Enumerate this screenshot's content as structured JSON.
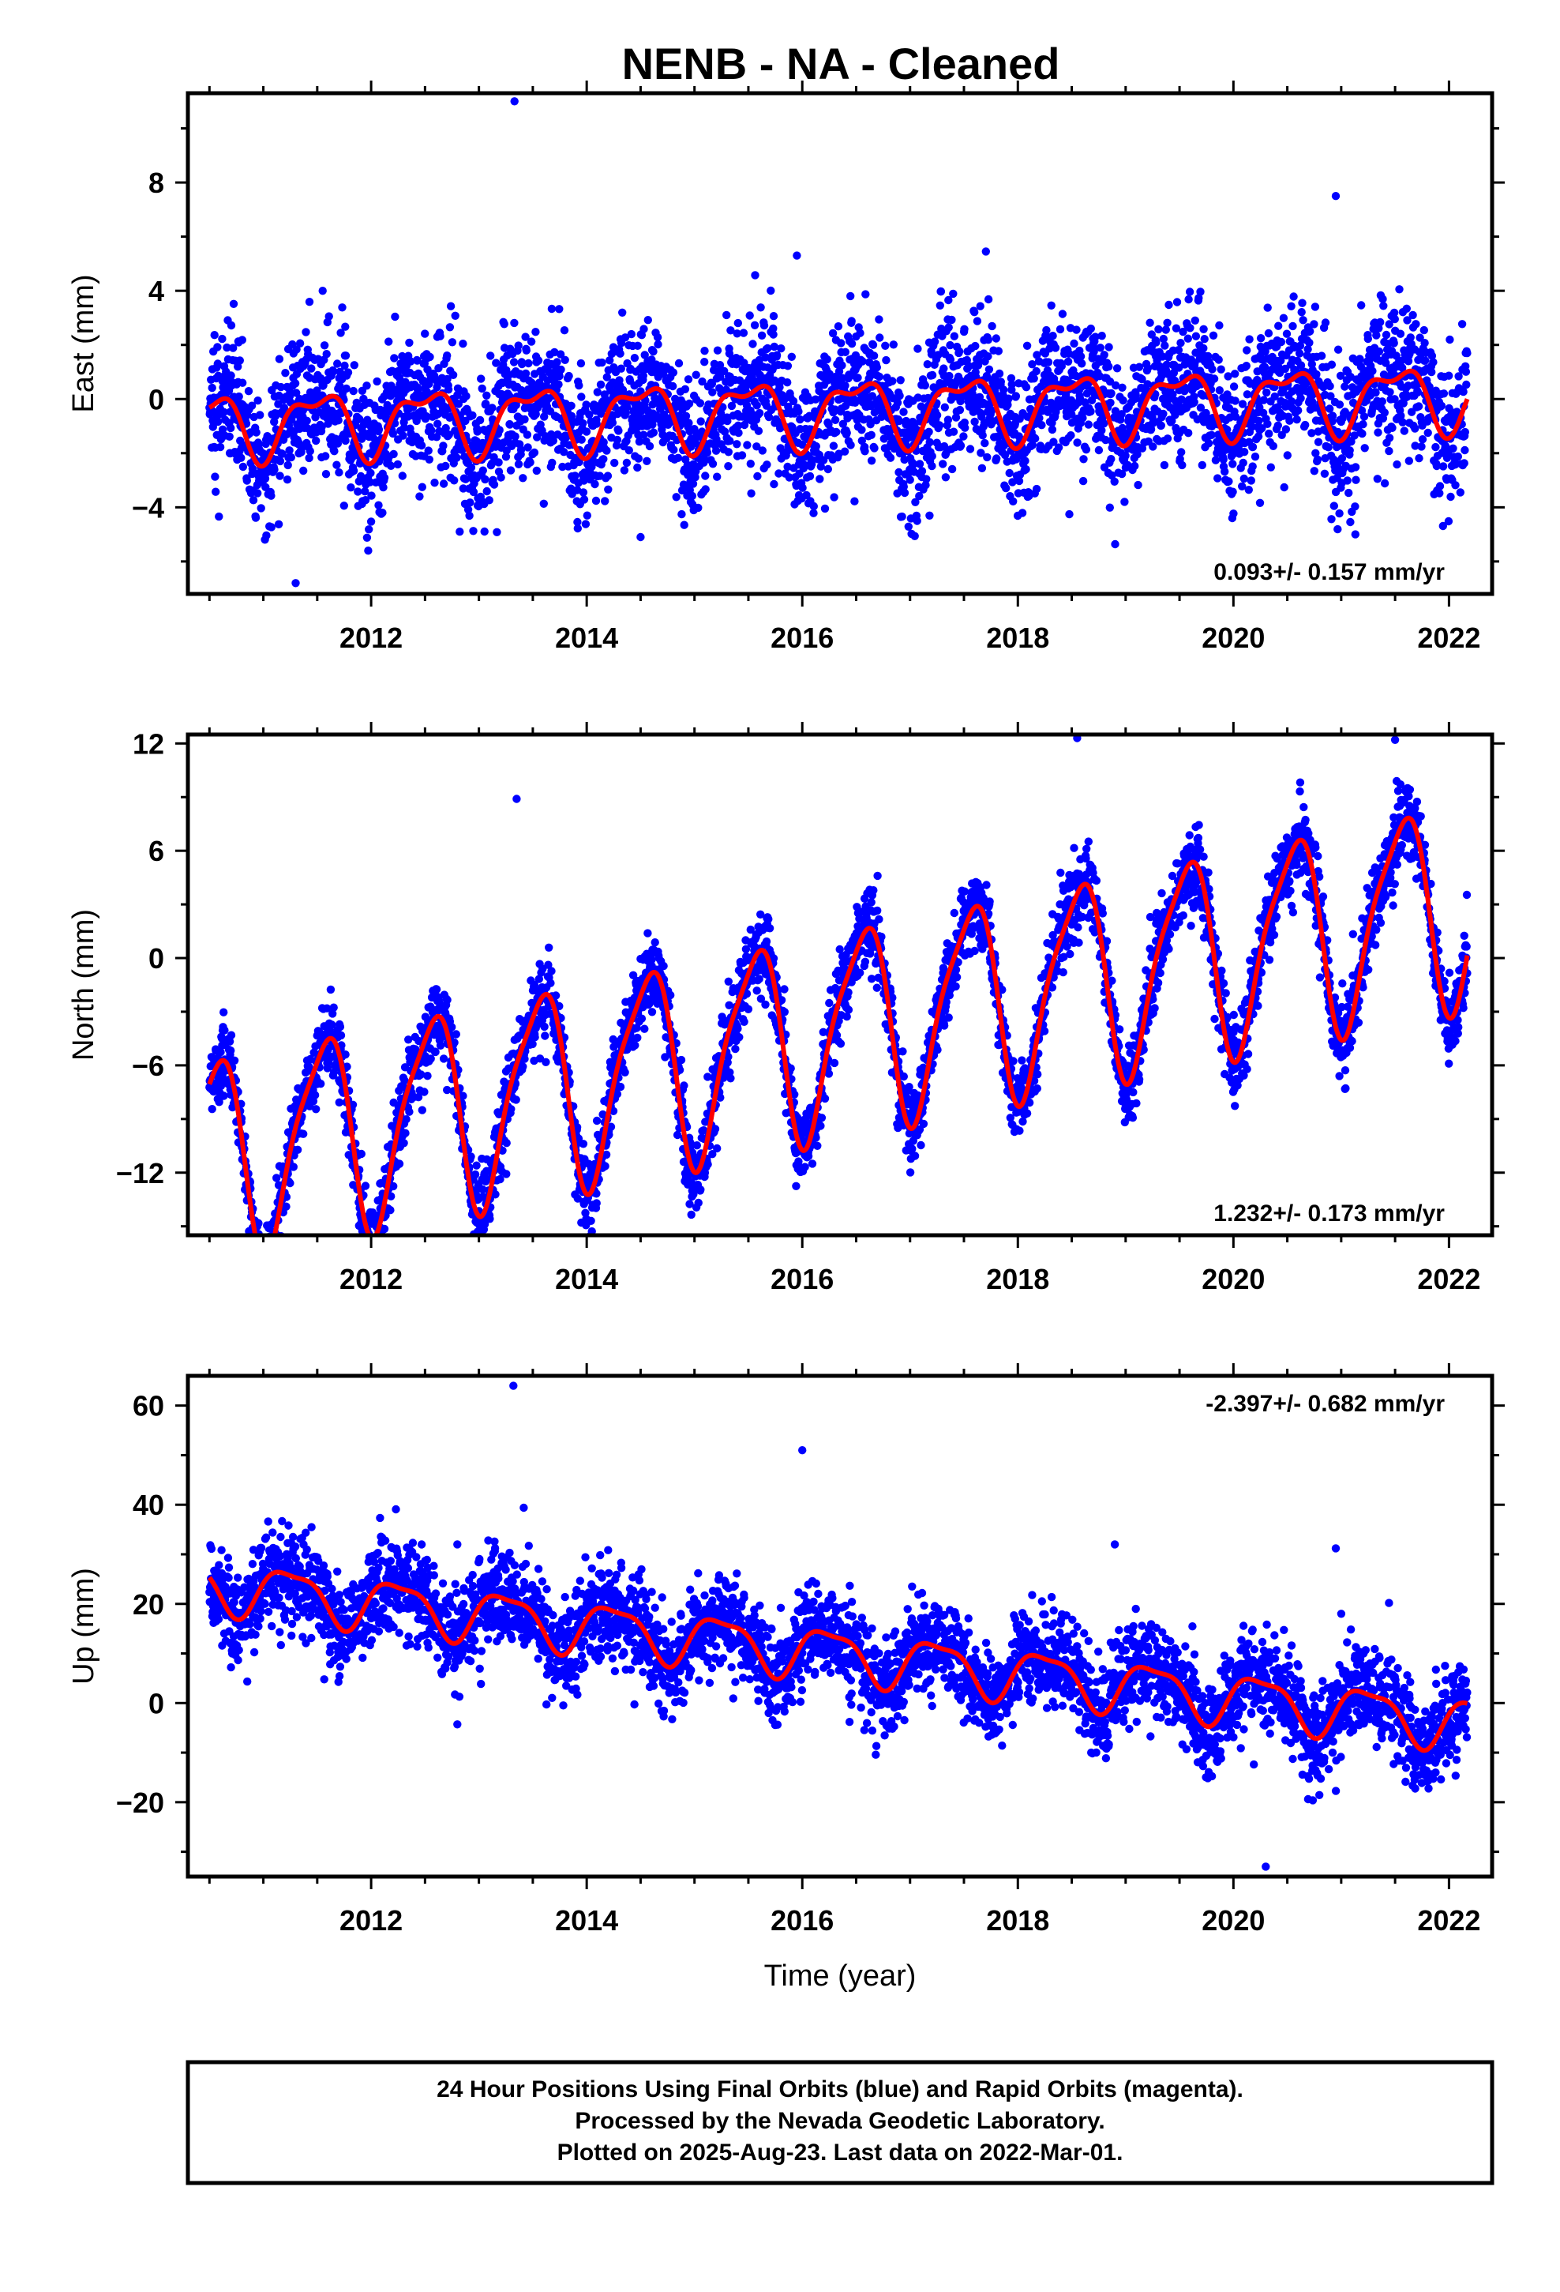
{
  "title": "NENB  - NA - Cleaned",
  "colors": {
    "points": "#0000ff",
    "fit": "#ff0000",
    "frame": "#000000"
  },
  "chart_data": [
    {
      "type": "scatter",
      "component": "East",
      "ylabel": "East (mm)",
      "xlabel": "",
      "xlim": [
        2010.3,
        2022.4
      ],
      "ylim": [
        -7.2,
        11.3
      ],
      "yticks": [
        -4,
        0,
        4,
        8
      ],
      "xticks": [
        2012,
        2014,
        2016,
        2018,
        2020,
        2022
      ],
      "rate_text": "0.093+/- 0.157 mm/yr",
      "rate_position": "bottom-right",
      "trend": {
        "slope": 0.093,
        "offset": -0.4,
        "annual_amp": 1.1,
        "annual_phase": 0.25,
        "semi_amp": 0.5,
        "semi_phase": 0.6
      },
      "scatter_sd": 1.3,
      "outliers": [
        [
          2013.33,
          11.0
        ],
        [
          2011.3,
          -6.8
        ],
        [
          2020.95,
          7.5
        ],
        [
          2015.95,
          5.3
        ],
        [
          2011.55,
          4.0
        ],
        [
          2014.5,
          -5.1
        ]
      ],
      "series": [
        {
          "name": "24 Hour Positions Using Final Orbits (blue)",
          "kind": "points"
        },
        {
          "name": "",
          "kind": "fit"
        }
      ]
    },
    {
      "type": "scatter",
      "component": "North",
      "ylabel": "North (mm)",
      "xlabel": "",
      "xlim": [
        2010.3,
        2022.4
      ],
      "ylim": [
        -15.5,
        12.5
      ],
      "yticks": [
        -12,
        -6,
        0,
        6,
        12
      ],
      "xticks": [
        2012,
        2014,
        2016,
        2018,
        2020,
        2022
      ],
      "rate_text": "1.232+/- 0.173 mm/yr",
      "rate_position": "bottom-right",
      "trend": {
        "slope": 1.232,
        "offset": -4.0,
        "annual_amp": 5.5,
        "annual_phase": 0.3,
        "semi_amp": 1.2,
        "semi_phase": 0.1
      },
      "scatter_sd": 1.1,
      "outliers": [
        [
          2013.35,
          8.9
        ],
        [
          2011.95,
          -15.2
        ],
        [
          2018.55,
          12.3
        ],
        [
          2021.5,
          12.2
        ]
      ],
      "series": [
        {
          "name": "24 Hour Positions Using Final Orbits (blue)",
          "kind": "points"
        },
        {
          "name": "",
          "kind": "fit"
        }
      ]
    },
    {
      "type": "scatter",
      "component": "Up",
      "ylabel": "Up (mm)",
      "xlabel": "Time (year)",
      "xlim": [
        2010.3,
        2022.4
      ],
      "ylim": [
        -35,
        66
      ],
      "yticks": [
        -20,
        0,
        20,
        40,
        60
      ],
      "xticks": [
        2012,
        2014,
        2016,
        2018,
        2020,
        2022
      ],
      "rate_text": "-2.397+/- 0.682 mm/yr",
      "rate_position": "top-right",
      "trend": {
        "slope": -2.397,
        "offset": 10.0,
        "annual_amp": 5.0,
        "annual_phase": 0.0,
        "semi_amp": 1.5,
        "semi_phase": 0.4
      },
      "scatter_sd": 4.8,
      "outliers": [
        [
          2013.32,
          64
        ],
        [
          2016.0,
          51
        ],
        [
          2018.9,
          32
        ],
        [
          2020.95,
          31.2
        ],
        [
          2021.0,
          18
        ],
        [
          2020.3,
          -33
        ],
        [
          2012.8,
          32
        ]
      ],
      "series": [
        {
          "name": "24 Hour Positions Using Final Orbits (blue)",
          "kind": "points"
        },
        {
          "name": "",
          "kind": "fit"
        }
      ]
    }
  ],
  "footer": {
    "line1": "24 Hour Positions Using Final Orbits (blue) and Rapid Orbits (magenta).",
    "line2": "Processed by the Nevada Geodetic Laboratory.",
    "line3": "Plotted on 2025-Aug-23. Last data on 2022-Mar-01."
  },
  "data_span": {
    "start": 2010.5,
    "end": 2022.17
  }
}
